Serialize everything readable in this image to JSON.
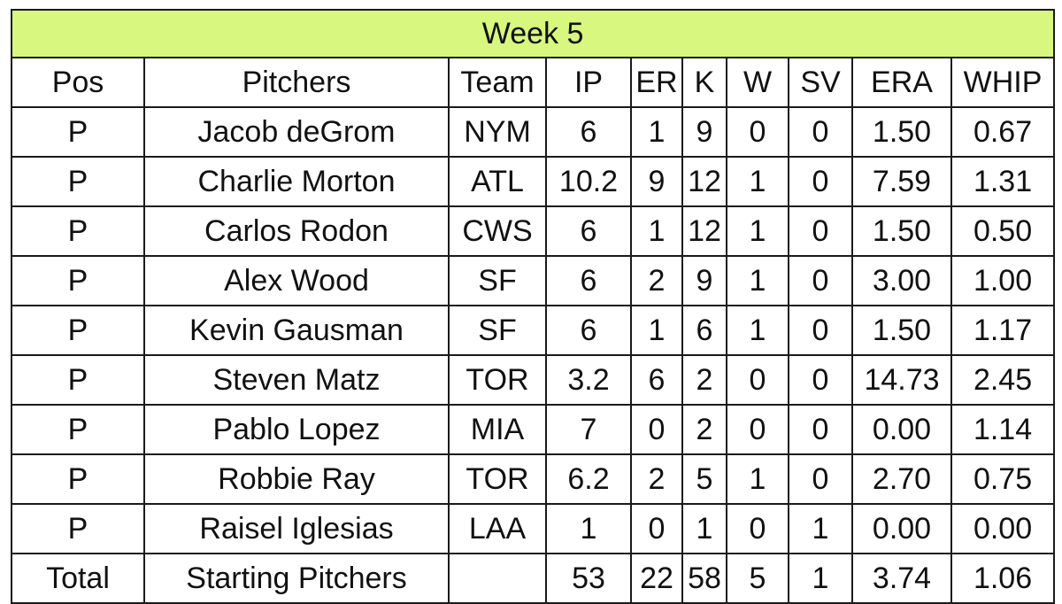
{
  "title": "Week 5",
  "columns": [
    "Pos",
    "Pitchers",
    "Team",
    "IP",
    "ER",
    "K",
    "W",
    "SV",
    "ERA",
    "WHIP"
  ],
  "rows": [
    [
      "P",
      "Jacob deGrom",
      "NYM",
      "6",
      "1",
      "9",
      "0",
      "0",
      "1.50",
      "0.67"
    ],
    [
      "P",
      "Charlie Morton",
      "ATL",
      "10.2",
      "9",
      "12",
      "1",
      "0",
      "7.59",
      "1.31"
    ],
    [
      "P",
      "Carlos Rodon",
      "CWS",
      "6",
      "1",
      "12",
      "1",
      "0",
      "1.50",
      "0.50"
    ],
    [
      "P",
      "Alex Wood",
      "SF",
      "6",
      "2",
      "9",
      "1",
      "0",
      "3.00",
      "1.00"
    ],
    [
      "P",
      "Kevin Gausman",
      "SF",
      "6",
      "1",
      "6",
      "1",
      "0",
      "1.50",
      "1.17"
    ],
    [
      "P",
      "Steven Matz",
      "TOR",
      "3.2",
      "6",
      "2",
      "0",
      "0",
      "14.73",
      "2.45"
    ],
    [
      "P",
      "Pablo Lopez",
      "MIA",
      "7",
      "0",
      "2",
      "0",
      "0",
      "0.00",
      "1.14"
    ],
    [
      "P",
      "Robbie Ray",
      "TOR",
      "6.2",
      "2",
      "5",
      "1",
      "0",
      "2.70",
      "0.75"
    ],
    [
      "P",
      "Raisel Iglesias",
      "LAA",
      "1",
      "0",
      "1",
      "0",
      "1",
      "0.00",
      "0.00"
    ]
  ],
  "total": [
    "Total",
    "Starting Pitchers",
    "",
    "53",
    "22",
    "58",
    "5",
    "1",
    "3.74",
    "1.06"
  ],
  "colors": {
    "title_background": "#d7f77f",
    "border": "#1a1a1a"
  }
}
